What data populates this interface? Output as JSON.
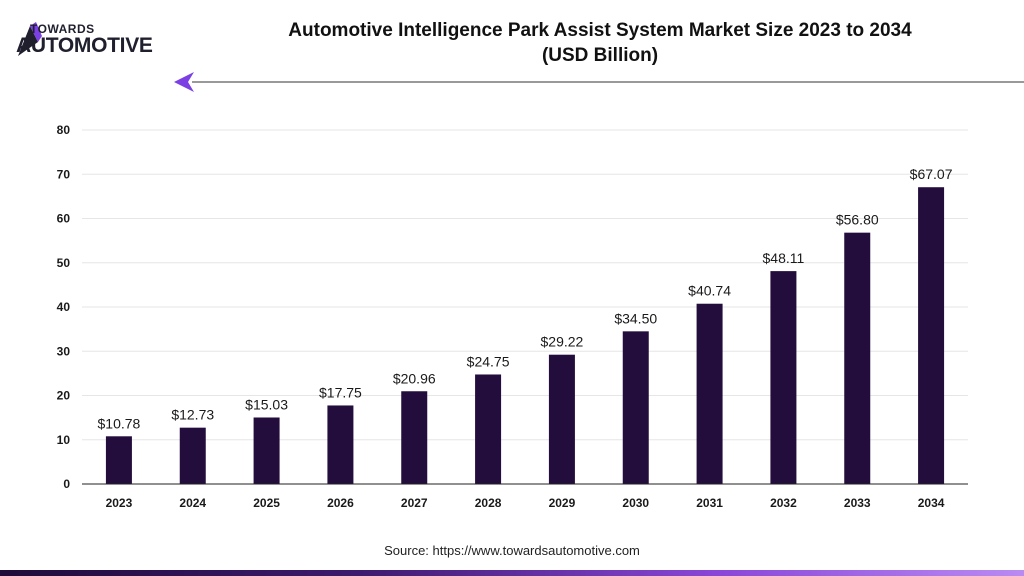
{
  "brand": {
    "line1": "TOWARDS",
    "line2": "AUTOMOTIVE",
    "colors": {
      "dark": "#1f1f2e",
      "accent": "#7b3fe4"
    }
  },
  "header": {
    "title_line1": "Automotive Intelligence Park Assist System Market Size 2023 to 2034",
    "title_line2": "(USD Billion)"
  },
  "chart_data": {
    "type": "bar",
    "title": "Automotive Intelligence Park Assist System Market Size 2023 to 2034 (USD Billion)",
    "xlabel": "",
    "ylabel": "",
    "categories": [
      "2023",
      "2024",
      "2025",
      "2026",
      "2027",
      "2028",
      "2029",
      "2030",
      "2031",
      "2032",
      "2033",
      "2034"
    ],
    "values": [
      10.78,
      12.73,
      15.03,
      17.75,
      20.96,
      24.75,
      29.22,
      34.5,
      40.74,
      48.11,
      56.8,
      67.07
    ],
    "data_labels": [
      "$10.78",
      "$12.73",
      "$15.03",
      "$17.75",
      "$20.96",
      "$24.75",
      "$29.22",
      "$34.50",
      "$40.74",
      "$48.11",
      "$56.80",
      "$67.07"
    ],
    "ylim": [
      0,
      80
    ],
    "yticks": [
      0,
      10,
      20,
      30,
      40,
      50,
      60,
      70,
      80
    ],
    "grid": true,
    "legend": "none",
    "bar_color": "#230d3d"
  },
  "footer": {
    "source": "Source: https://www.towardsautomotive.com"
  }
}
